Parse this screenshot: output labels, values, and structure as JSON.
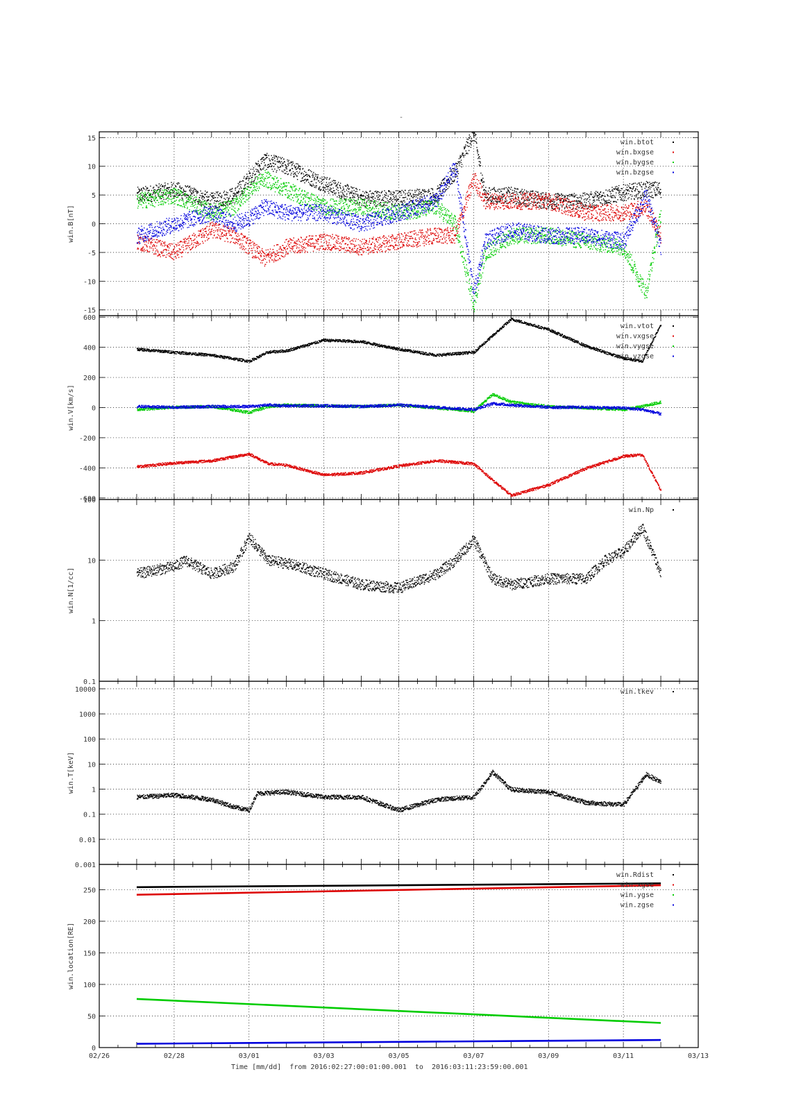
{
  "title": "-",
  "footer": {
    "time_label": "Time [mm/dd]",
    "range_text": "from 2016:02:27:00:01:00.001  to  2016:03:11:23:59:00.001"
  },
  "x_axis": {
    "range_days": [
      "02/26",
      "03/13"
    ],
    "tick_labels": [
      "02/26",
      "02/28",
      "03/01",
      "03/03",
      "03/05",
      "03/07",
      "03/09",
      "03/11",
      "03/13"
    ],
    "tick_day_offsets": [
      0,
      2,
      4,
      6,
      8,
      10,
      12,
      14,
      16
    ],
    "data_start_day": 1.0,
    "data_end_day": 15.0
  },
  "colors": {
    "black": "#000000",
    "red": "#dd0000",
    "green": "#00cc00",
    "blue": "#0000dd",
    "grid": "#000000"
  },
  "chart_data": [
    {
      "type": "scatter",
      "ylabel": "win.B[nT]",
      "ylim": [
        -16,
        16
      ],
      "y_ticks": [
        15,
        10,
        5,
        0,
        -5,
        -10,
        -15
      ],
      "scale": "linear",
      "grid": true,
      "legend_position": "top-right",
      "series": [
        {
          "name": "win.btot",
          "color": "black",
          "x": [
            1,
            2,
            3,
            3.6,
            4,
            4.4,
            5,
            6,
            7,
            8,
            9,
            9.5,
            10,
            10.3,
            11,
            12,
            13,
            14,
            14.6,
            15
          ],
          "y": [
            5,
            6,
            4,
            5,
            8,
            11,
            10,
            7,
            4.5,
            4.5,
            5,
            9,
            16,
            5,
            5,
            4,
            4,
            5.5,
            6,
            6
          ]
        },
        {
          "name": "win.bxgse",
          "color": "red",
          "x": [
            1,
            2,
            3,
            3.6,
            4,
            4.4,
            5,
            6,
            7,
            8,
            9,
            9.5,
            10,
            10.3,
            11,
            12,
            13,
            14,
            14.6,
            15
          ],
          "y": [
            -3,
            -5,
            -1,
            -2,
            -4,
            -6,
            -4,
            -3,
            -4,
            -3,
            -2,
            -2,
            8,
            4,
            4,
            4,
            2,
            2,
            3,
            -2
          ]
        },
        {
          "name": "win.bygse",
          "color": "green",
          "x": [
            1,
            2,
            3,
            3.6,
            4,
            4.4,
            5,
            6,
            7,
            8,
            9,
            9.5,
            10,
            10.3,
            11,
            12,
            13,
            14,
            14.6,
            15
          ],
          "y": [
            4,
            5,
            2,
            3,
            6,
            8,
            6,
            3,
            3,
            2,
            3,
            0,
            -14,
            -5,
            -2,
            -2,
            -3,
            -4,
            -12,
            2
          ]
        },
        {
          "name": "win.bzgse",
          "color": "blue",
          "x": [
            1,
            2,
            3,
            3.6,
            4,
            4.4,
            5,
            6,
            7,
            8,
            9,
            9.5,
            10,
            10.3,
            11,
            12,
            13,
            14,
            14.6,
            15
          ],
          "y": [
            -2,
            0,
            2,
            0,
            1,
            3,
            2,
            2,
            0,
            2,
            4,
            10,
            -12,
            -3,
            -1,
            -2,
            -2,
            -3,
            5,
            -4
          ]
        }
      ]
    },
    {
      "type": "scatter",
      "ylabel": "win.V[km/s]",
      "ylim": [
        -610,
        610
      ],
      "y_ticks": [
        600,
        400,
        200,
        0,
        -200,
        -400,
        -600
      ],
      "scale": "linear",
      "grid": true,
      "legend_position": "top-right",
      "series": [
        {
          "name": "win.vtot",
          "color": "black",
          "x": [
            1,
            2,
            3,
            4,
            4.5,
            5,
            6,
            7,
            8,
            9,
            10,
            10.5,
            11,
            12,
            13,
            14,
            14.5,
            15
          ],
          "y": [
            390,
            370,
            350,
            310,
            370,
            380,
            450,
            440,
            390,
            350,
            370,
            480,
            590,
            520,
            410,
            330,
            310,
            560
          ]
        },
        {
          "name": "win.vxgse",
          "color": "red",
          "x": [
            1,
            2,
            3,
            4,
            4.5,
            5,
            6,
            7,
            8,
            9,
            10,
            10.5,
            11,
            12,
            13,
            14,
            14.5,
            15
          ],
          "y": [
            -390,
            -365,
            -350,
            -305,
            -370,
            -380,
            -445,
            -430,
            -385,
            -350,
            -370,
            -480,
            -580,
            -510,
            -400,
            -320,
            -310,
            -550
          ]
        },
        {
          "name": "win.vygse",
          "color": "green",
          "x": [
            1,
            2,
            3,
            4,
            4.5,
            5,
            6,
            7,
            8,
            9,
            10,
            10.5,
            11,
            12,
            13,
            14,
            14.5,
            15
          ],
          "y": [
            -10,
            5,
            10,
            -30,
            10,
            20,
            15,
            10,
            20,
            0,
            -20,
            90,
            40,
            10,
            0,
            -10,
            10,
            40
          ]
        },
        {
          "name": "win.vzgse",
          "color": "blue",
          "x": [
            1,
            2,
            3,
            4,
            4.5,
            5,
            6,
            7,
            8,
            9,
            10,
            10.5,
            11,
            12,
            13,
            14,
            14.5,
            15
          ],
          "y": [
            10,
            5,
            10,
            10,
            20,
            15,
            15,
            10,
            20,
            5,
            -10,
            30,
            20,
            5,
            5,
            0,
            -10,
            -40
          ]
        }
      ]
    },
    {
      "type": "scatter",
      "ylabel": "win.N[1/cc]",
      "ylim": [
        0.1,
        100
      ],
      "y_ticks": [
        100,
        10,
        1,
        0.1
      ],
      "scale": "log",
      "grid": true,
      "legend_position": "top-right",
      "series": [
        {
          "name": "win.Np",
          "color": "black",
          "x": [
            1,
            2,
            2.3,
            3,
            3.6,
            4,
            4.5,
            5,
            6,
            7,
            8,
            9,
            9.5,
            10,
            10.5,
            11,
            12,
            13,
            13.5,
            14,
            14.5,
            15
          ],
          "y": [
            6,
            8,
            10,
            6,
            8,
            24,
            10,
            9,
            6,
            4,
            3.5,
            6,
            10,
            22,
            5,
            4,
            5,
            5,
            10,
            14,
            35,
            6
          ]
        }
      ]
    },
    {
      "type": "scatter",
      "ylabel": "win.T[keV]",
      "ylim": [
        0.001,
        20000
      ],
      "y_ticks": [
        10000,
        1000,
        100,
        10,
        1,
        0.1,
        0.01,
        0.001
      ],
      "tick_labels": [
        "10000",
        "1000",
        "100",
        "10",
        "1",
        "0.1",
        "0.01",
        "0.001"
      ],
      "scale": "log",
      "grid": true,
      "legend_position": "top-right",
      "series": [
        {
          "name": "win.tkev",
          "color": "black",
          "x": [
            1,
            2,
            3,
            3.6,
            4,
            4.2,
            5,
            6,
            7,
            8,
            9,
            10,
            10.5,
            11,
            12,
            13,
            14,
            14.6,
            15
          ],
          "y": [
            0.5,
            0.6,
            0.4,
            0.2,
            0.15,
            0.7,
            0.8,
            0.5,
            0.5,
            0.15,
            0.4,
            0.5,
            5,
            1,
            0.8,
            0.3,
            0.25,
            4,
            2
          ]
        }
      ]
    },
    {
      "type": "line",
      "ylabel": "win.location[RE]",
      "ylim": [
        0,
        290
      ],
      "y_ticks": [
        250,
        200,
        150,
        100,
        50,
        0
      ],
      "scale": "linear",
      "grid": true,
      "legend_position": "top-right",
      "series": [
        {
          "name": "win.Rdist",
          "color": "black",
          "x": [
            1,
            15
          ],
          "y": [
            254,
            260
          ]
        },
        {
          "name": "win.xgse",
          "color": "red",
          "x": [
            1,
            15
          ],
          "y": [
            242,
            257
          ]
        },
        {
          "name": "win.ygse",
          "color": "green",
          "x": [
            1,
            15
          ],
          "y": [
            77,
            39
          ]
        },
        {
          "name": "win.zgse",
          "color": "blue",
          "x": [
            1,
            15
          ],
          "y": [
            6,
            12
          ]
        }
      ]
    }
  ]
}
